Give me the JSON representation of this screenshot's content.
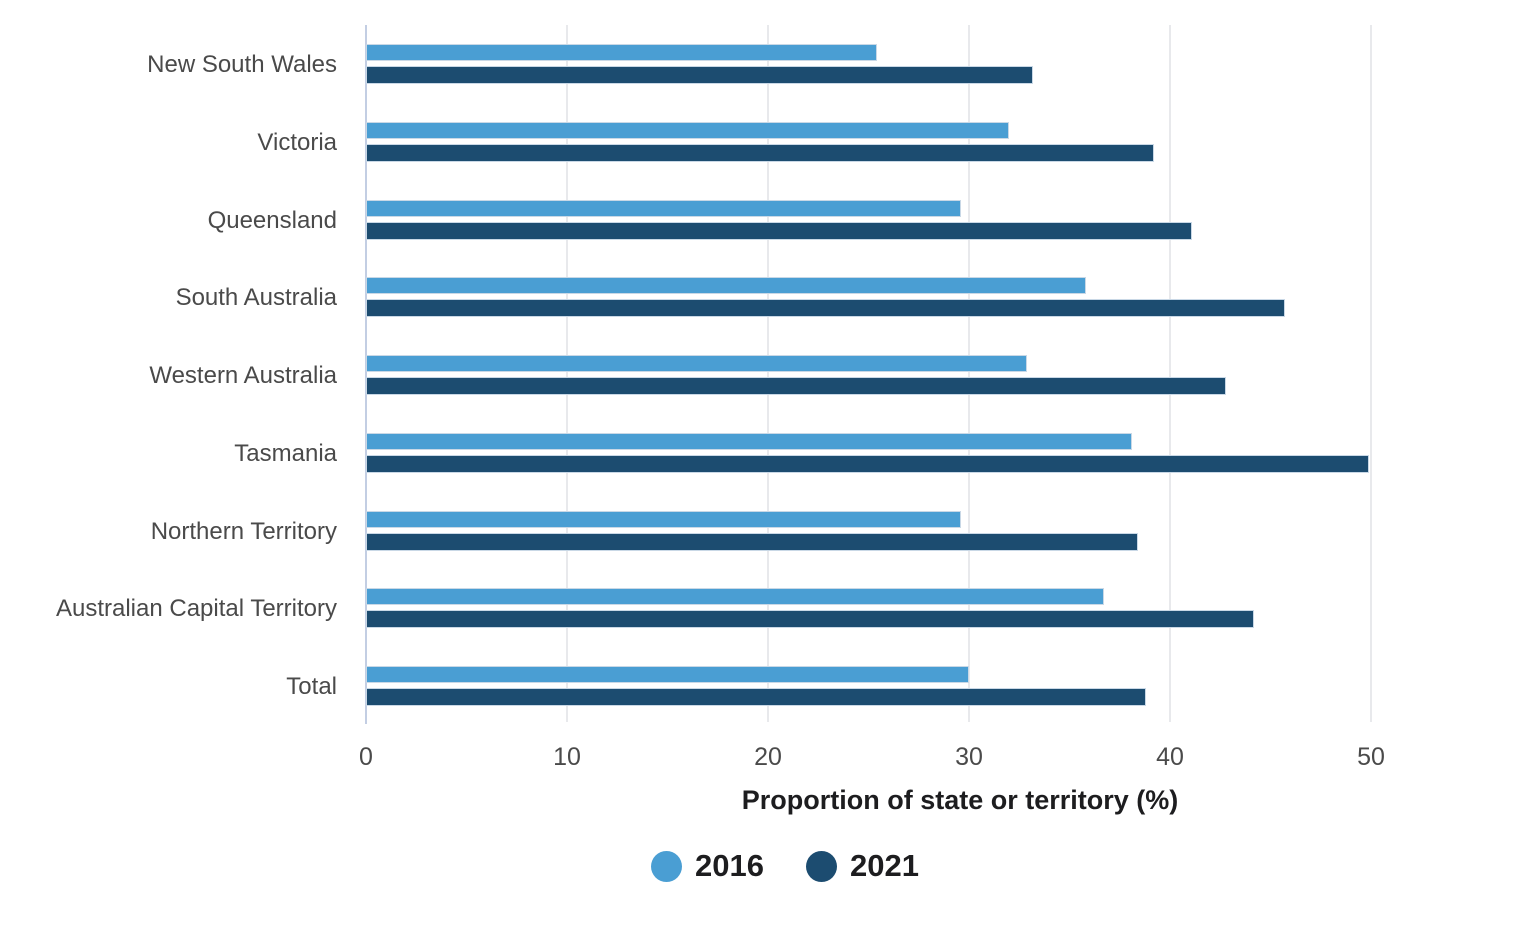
{
  "chart_data": {
    "type": "bar",
    "orientation": "horizontal",
    "title": "",
    "xlabel": "Proportion of state or territory (%)",
    "ylabel": "",
    "categories": [
      "New South Wales",
      "Victoria",
      "Queensland",
      "South Australia",
      "Western Australia",
      "Tasmania",
      "Northern Territory",
      "Australian Capital Territory",
      "Total"
    ],
    "series": [
      {
        "name": "2016",
        "color": "#4A9ED3",
        "values": [
          25.4,
          32.0,
          29.6,
          35.8,
          32.9,
          38.1,
          29.6,
          36.7,
          30.0
        ]
      },
      {
        "name": "2021",
        "color": "#1C4C70",
        "values": [
          33.2,
          39.2,
          41.1,
          45.7,
          42.8,
          49.9,
          38.4,
          44.2,
          38.8
        ]
      }
    ],
    "xlim": [
      0,
      50
    ],
    "xticks": [
      0,
      10,
      20,
      30,
      40,
      50
    ],
    "xtick_labels": [
      "0",
      "10",
      "20",
      "30",
      "40",
      "50"
    ],
    "grid": "vertical-gridlines",
    "legend_position": "bottom-center"
  },
  "colors": {
    "series_2016": "#4A9ED3",
    "series_2021": "#1C4C70",
    "gridline": "#E8E9EC",
    "zero_axis_line": "#C3CEE3",
    "category_label": "#4A4A4A",
    "tick_label": "#4A4A4A",
    "axis_title_text": "#1D1D1F",
    "legend_text": "#1D1D1F",
    "background": "#FFFFFF"
  },
  "legend": {
    "items": [
      {
        "label": "2016",
        "swatch": "circle-icon"
      },
      {
        "label": "2021",
        "swatch": "circle-icon"
      }
    ]
  }
}
